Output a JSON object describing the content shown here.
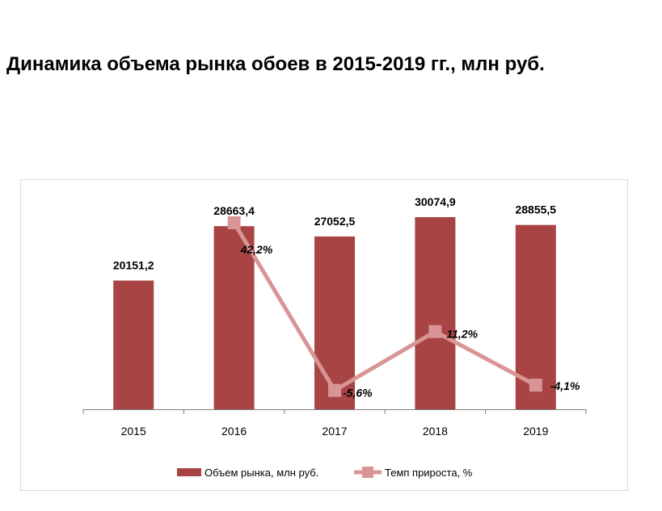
{
  "title": "Динамика объема рынка обоев в 2015-2019 гг., млн руб.",
  "colors": {
    "bar": "#a84444",
    "line": "#d99595",
    "axis": "#808080"
  },
  "chart_data": {
    "type": "bar",
    "categories": [
      "2015",
      "2016",
      "2017",
      "2018",
      "2019"
    ],
    "series": [
      {
        "name": "Объем рынка, млн руб.",
        "type": "bar",
        "values": [
          20151.2,
          28663.4,
          27052.5,
          30074.9,
          28855.5
        ],
        "labels": [
          "20151,2",
          "28663,4",
          "27052,5",
          "30074,9",
          "28855,5"
        ]
      },
      {
        "name": "Темп прироста, %",
        "type": "line",
        "values": [
          null,
          42.2,
          -5.6,
          11.2,
          -4.1
        ],
        "labels": [
          "",
          "42,2%",
          "-5,6%",
          "11,2%",
          "-4,1%"
        ]
      }
    ],
    "legend_position": "bottom",
    "grid": false
  }
}
